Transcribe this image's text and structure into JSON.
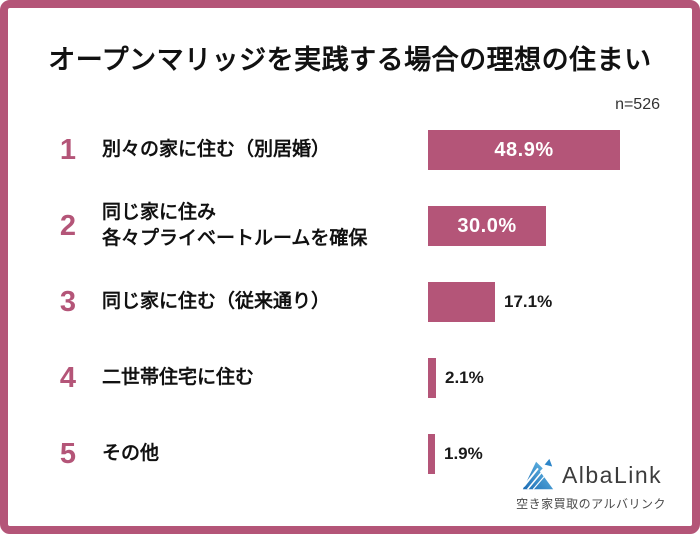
{
  "accent_color": "#b45578",
  "text_color": "#111111",
  "header": {
    "title": "オープンマリッジを実践する場合の理想の住まい",
    "sample_size": "n=526"
  },
  "rows": [
    {
      "rank": "1",
      "label": "別々の家に住む（別居婚）",
      "value_label": "48.9%",
      "value_inside_bar": true
    },
    {
      "rank": "2",
      "label": "同じ家に住み\n各々プライベートルームを確保",
      "value_label": "30.0%",
      "value_inside_bar": true
    },
    {
      "rank": "3",
      "label": "同じ家に住む（従来通り）",
      "value_label": "17.1%",
      "value_inside_bar": false
    },
    {
      "rank": "4",
      "label": "二世帯住宅に住む",
      "value_label": "2.1%",
      "value_inside_bar": false
    },
    {
      "rank": "5",
      "label": "その他",
      "value_label": "1.9%",
      "value_inside_bar": false
    }
  ],
  "chart_data": {
    "type": "bar",
    "orientation": "horizontal",
    "title": "オープンマリッジを実践する場合の理想の住まい",
    "annotation": "n=526",
    "categories": [
      "別々の家に住む（別居婚）",
      "同じ家に住み 各々プライベートルームを確保",
      "同じ家に住む（従来通り）",
      "二世帯住宅に住む",
      "その他"
    ],
    "values": [
      48.9,
      30.0,
      17.1,
      2.1,
      1.9
    ],
    "value_labels": [
      "48.9%",
      "30.0%",
      "17.1%",
      "2.1%",
      "1.9%"
    ],
    "xlim": [
      0,
      100
    ],
    "bar_color": "#b45578",
    "grid": false,
    "legend": false
  },
  "brand": {
    "name": "AlbaLink",
    "tagline": "空き家買取のアルバリンク",
    "icon": "mountain-logo-icon",
    "blue_dark": "#1c6cb4",
    "blue_light": "#6cc0ea"
  }
}
